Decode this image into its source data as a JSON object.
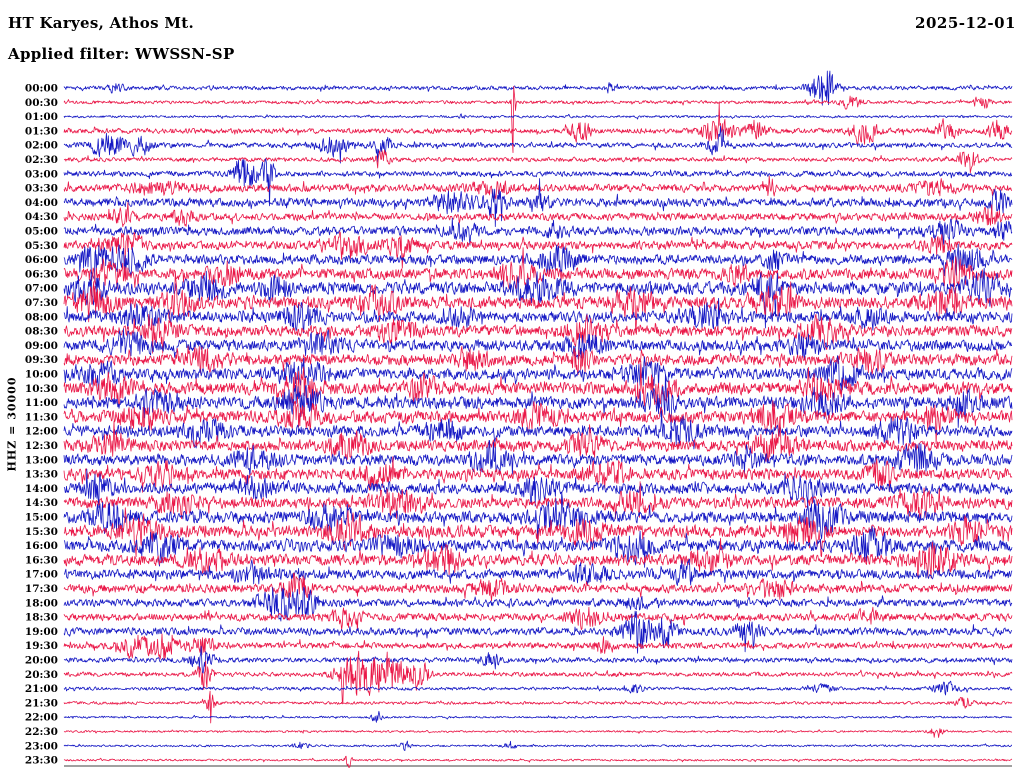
{
  "header": {
    "station_title": "HT Karyes, Athos Mt.",
    "date": "2025-12-01",
    "filter_label": "Applied filter: WWSSN-SP",
    "scale_label": "HHZ = 30000"
  },
  "colors": {
    "trace_blue": "#1518c4",
    "trace_red": "#ea1848",
    "text": "#000000",
    "background": "#ffffff"
  },
  "chart_data": {
    "type": "line",
    "subtype": "helicorder-seismogram-drumplot",
    "station": "HT Karyes, Athos Mt.",
    "date": "2025-12-01",
    "filter": "WWSSN-SP",
    "channel_scale": "HHZ = 30000",
    "minutes_per_row": 30,
    "row_order": "top to bottom, 00:00 to 23:30, colors alternate blue/red",
    "rows_format": {
      "t": "row start time label",
      "c": "trace color key",
      "b": "background noise half-amplitude (px)",
      "e": "bursts: [center 0-1 along row, gaussian width 0-1, half-amplitude px]"
    },
    "rows": [
      {
        "t": "00:00",
        "c": "blue",
        "b": 1.1,
        "e": [
          [
            0.055,
            0.008,
            2.5
          ],
          [
            0.575,
            0.006,
            2
          ],
          [
            0.8,
            0.012,
            13
          ]
        ]
      },
      {
        "t": "00:30",
        "c": "red",
        "b": 0.9,
        "e": [
          [
            0.474,
            0.0018,
            30
          ],
          [
            0.83,
            0.01,
            4
          ],
          [
            0.968,
            0.008,
            3.5
          ]
        ]
      },
      {
        "t": "01:00",
        "c": "blue",
        "b": 0.65,
        "e": [
          [
            0.42,
            0.004,
            1.5
          ]
        ]
      },
      {
        "t": "01:30",
        "c": "red",
        "b": 1.4,
        "e": [
          [
            0.545,
            0.01,
            5.5
          ],
          [
            0.69,
            0.018,
            6.5
          ],
          [
            0.73,
            0.01,
            6
          ],
          [
            0.845,
            0.014,
            6.5
          ],
          [
            0.93,
            0.012,
            5
          ],
          [
            0.985,
            0.01,
            5
          ]
        ]
      },
      {
        "t": "02:00",
        "c": "blue",
        "b": 1.4,
        "e": [
          [
            0.045,
            0.018,
            6
          ],
          [
            0.08,
            0.012,
            5
          ],
          [
            0.285,
            0.018,
            5
          ],
          [
            0.335,
            0.01,
            4.5
          ],
          [
            0.69,
            0.012,
            4.5
          ]
        ]
      },
      {
        "t": "02:30",
        "c": "red",
        "b": 1.2,
        "e": [
          [
            0.335,
            0.007,
            5.5
          ],
          [
            0.955,
            0.009,
            5.5
          ]
        ]
      },
      {
        "t": "03:00",
        "c": "blue",
        "b": 1.5,
        "e": [
          [
            0.19,
            0.01,
            13
          ],
          [
            0.215,
            0.007,
            9
          ]
        ]
      },
      {
        "t": "03:30",
        "c": "red",
        "b": 2.1,
        "e": [
          [
            0.1,
            0.03,
            3
          ],
          [
            0.45,
            0.02,
            3.5
          ],
          [
            0.745,
            0.004,
            8
          ],
          [
            0.92,
            0.02,
            3.5
          ]
        ]
      },
      {
        "t": "04:00",
        "c": "blue",
        "b": 2.4,
        "e": [
          [
            0.41,
            0.02,
            5.5
          ],
          [
            0.455,
            0.012,
            6.5
          ],
          [
            0.5,
            0.01,
            5.5
          ],
          [
            0.985,
            0.008,
            7
          ]
        ]
      },
      {
        "t": "04:30",
        "c": "red",
        "b": 2.1,
        "e": [
          [
            0.06,
            0.01,
            4.5
          ],
          [
            0.125,
            0.01,
            4.5
          ],
          [
            0.975,
            0.012,
            5.5
          ]
        ]
      },
      {
        "t": "05:00",
        "c": "blue",
        "b": 2.4,
        "e": [
          [
            0.42,
            0.014,
            4.5
          ],
          [
            0.52,
            0.01,
            4.5
          ],
          [
            0.93,
            0.018,
            5.5
          ],
          [
            0.99,
            0.008,
            6
          ]
        ]
      },
      {
        "t": "05:30",
        "c": "red",
        "b": 2.4,
        "e": [
          [
            0.065,
            0.018,
            6.5
          ],
          [
            0.3,
            0.022,
            6.5
          ],
          [
            0.355,
            0.013,
            5.5
          ],
          [
            0.92,
            0.014,
            4.5
          ]
        ]
      },
      {
        "t": "06:00",
        "c": "blue",
        "b": 2.7,
        "e": [
          [
            0.035,
            0.018,
            7.5
          ],
          [
            0.07,
            0.018,
            6.5
          ],
          [
            0.52,
            0.02,
            6.5
          ],
          [
            0.75,
            0.01,
            5.5
          ],
          [
            0.95,
            0.018,
            7.5
          ]
        ]
      },
      {
        "t": "06:30",
        "c": "red",
        "b": 3.1,
        "e": [
          [
            0.05,
            0.02,
            5.5
          ],
          [
            0.17,
            0.014,
            5.5
          ],
          [
            0.48,
            0.02,
            5.5
          ],
          [
            0.71,
            0.01,
            5.5
          ],
          [
            0.94,
            0.018,
            6.5
          ]
        ]
      },
      {
        "t": "07:00",
        "c": "blue",
        "b": 3.4,
        "e": [
          [
            0.025,
            0.018,
            8
          ],
          [
            0.15,
            0.018,
            6.5
          ],
          [
            0.225,
            0.014,
            6.5
          ],
          [
            0.5,
            0.024,
            7.5
          ],
          [
            0.74,
            0.014,
            8.5
          ],
          [
            0.97,
            0.018,
            7.5
          ]
        ]
      },
      {
        "t": "07:30",
        "c": "red",
        "b": 3.4,
        "e": [
          [
            0.03,
            0.02,
            7.5
          ],
          [
            0.12,
            0.018,
            6.5
          ],
          [
            0.33,
            0.02,
            6.5
          ],
          [
            0.6,
            0.02,
            6.5
          ],
          [
            0.75,
            0.02,
            7.5
          ],
          [
            0.93,
            0.02,
            6.5
          ]
        ]
      },
      {
        "t": "08:00",
        "c": "blue",
        "b": 3.1,
        "e": [
          [
            0.08,
            0.02,
            5.5
          ],
          [
            0.25,
            0.02,
            6.5
          ],
          [
            0.42,
            0.014,
            5.5
          ],
          [
            0.68,
            0.02,
            6.5
          ],
          [
            0.85,
            0.014,
            5.5
          ]
        ]
      },
      {
        "t": "08:30",
        "c": "red",
        "b": 3.1,
        "e": [
          [
            0.1,
            0.02,
            5.5
          ],
          [
            0.35,
            0.02,
            5.5
          ],
          [
            0.55,
            0.02,
            6.5
          ],
          [
            0.8,
            0.02,
            6.5
          ]
        ]
      },
      {
        "t": "09:00",
        "c": "blue",
        "b": 3.1,
        "e": [
          [
            0.07,
            0.02,
            6.5
          ],
          [
            0.27,
            0.02,
            5.5
          ],
          [
            0.55,
            0.02,
            5.5
          ],
          [
            0.78,
            0.014,
            5.5
          ]
        ]
      },
      {
        "t": "09:30",
        "c": "red",
        "b": 3.1,
        "e": [
          [
            0.15,
            0.02,
            5.5
          ],
          [
            0.43,
            0.014,
            6.5
          ],
          [
            0.545,
            0.01,
            6.5
          ],
          [
            0.85,
            0.02,
            5.5
          ]
        ]
      },
      {
        "t": "10:00",
        "c": "blue",
        "b": 3.1,
        "e": [
          [
            0.035,
            0.02,
            6.5
          ],
          [
            0.25,
            0.024,
            6.5
          ],
          [
            0.61,
            0.02,
            6.5
          ],
          [
            0.82,
            0.02,
            7.5
          ]
        ]
      },
      {
        "t": "10:30",
        "c": "red",
        "b": 3.4,
        "e": [
          [
            0.05,
            0.02,
            6.5
          ],
          [
            0.25,
            0.02,
            7.5
          ],
          [
            0.38,
            0.014,
            6.5
          ],
          [
            0.62,
            0.02,
            7.5
          ],
          [
            0.8,
            0.02,
            6.5
          ]
        ]
      },
      {
        "t": "11:00",
        "c": "blue",
        "b": 3.4,
        "e": [
          [
            0.1,
            0.02,
            6.5
          ],
          [
            0.25,
            0.02,
            7.5
          ],
          [
            0.63,
            0.014,
            7.5
          ],
          [
            0.8,
            0.02,
            6.5
          ],
          [
            0.95,
            0.014,
            6.5
          ]
        ]
      },
      {
        "t": "11:30",
        "c": "red",
        "b": 3.4,
        "e": [
          [
            0.08,
            0.02,
            6.5
          ],
          [
            0.25,
            0.02,
            6.5
          ],
          [
            0.5,
            0.02,
            5.5
          ],
          [
            0.75,
            0.02,
            7.5
          ],
          [
            0.92,
            0.014,
            6.5
          ]
        ]
      },
      {
        "t": "12:00",
        "c": "blue",
        "b": 3.1,
        "e": [
          [
            0.15,
            0.02,
            6.5
          ],
          [
            0.4,
            0.02,
            5.5
          ],
          [
            0.65,
            0.02,
            6.5
          ],
          [
            0.88,
            0.02,
            6.5
          ]
        ]
      },
      {
        "t": "12:30",
        "c": "red",
        "b": 3.1,
        "e": [
          [
            0.05,
            0.02,
            5.5
          ],
          [
            0.3,
            0.02,
            6.5
          ],
          [
            0.55,
            0.02,
            5.5
          ],
          [
            0.75,
            0.02,
            7.5
          ]
        ]
      },
      {
        "t": "13:00",
        "c": "blue",
        "b": 3.1,
        "e": [
          [
            0.2,
            0.02,
            5.5
          ],
          [
            0.45,
            0.02,
            6.5
          ],
          [
            0.72,
            0.014,
            5.5
          ],
          [
            0.9,
            0.02,
            6.5
          ]
        ]
      },
      {
        "t": "13:30",
        "c": "red",
        "b": 3.1,
        "e": [
          [
            0.1,
            0.02,
            5.5
          ],
          [
            0.33,
            0.02,
            5.5
          ],
          [
            0.57,
            0.02,
            6.5
          ],
          [
            0.86,
            0.014,
            5.5
          ]
        ]
      },
      {
        "t": "14:00",
        "c": "blue",
        "b": 3.1,
        "e": [
          [
            0.035,
            0.012,
            7.5
          ],
          [
            0.2,
            0.02,
            5.5
          ],
          [
            0.5,
            0.02,
            5.5
          ],
          [
            0.78,
            0.02,
            6.5
          ]
        ]
      },
      {
        "t": "14:30",
        "c": "red",
        "b": 3.1,
        "e": [
          [
            0.12,
            0.02,
            5.5
          ],
          [
            0.35,
            0.024,
            6.5
          ],
          [
            0.6,
            0.02,
            5.5
          ],
          [
            0.9,
            0.02,
            6.5
          ]
        ]
      },
      {
        "t": "15:00",
        "c": "blue",
        "b": 3.4,
        "e": [
          [
            0.05,
            0.02,
            7.5
          ],
          [
            0.28,
            0.02,
            6.5
          ],
          [
            0.52,
            0.024,
            7.5
          ],
          [
            0.8,
            0.02,
            7.5
          ]
        ]
      },
      {
        "t": "15:30",
        "c": "red",
        "b": 3.4,
        "e": [
          [
            0.08,
            0.02,
            6.5
          ],
          [
            0.3,
            0.02,
            7.5
          ],
          [
            0.55,
            0.02,
            6.5
          ],
          [
            0.78,
            0.02,
            7.5
          ],
          [
            0.95,
            0.014,
            6.5
          ]
        ]
      },
      {
        "t": "16:00",
        "c": "blue",
        "b": 3.4,
        "e": [
          [
            0.1,
            0.02,
            7.5
          ],
          [
            0.35,
            0.02,
            6.5
          ],
          [
            0.6,
            0.02,
            7.5
          ],
          [
            0.85,
            0.02,
            7.5
          ]
        ]
      },
      {
        "t": "16:30",
        "c": "red",
        "b": 3.1,
        "e": [
          [
            0.15,
            0.02,
            5.5
          ],
          [
            0.4,
            0.02,
            6.5
          ],
          [
            0.68,
            0.02,
            5.5
          ],
          [
            0.92,
            0.02,
            7.5
          ]
        ]
      },
      {
        "t": "17:00",
        "c": "blue",
        "b": 2.7,
        "e": [
          [
            0.2,
            0.02,
            4.5
          ],
          [
            0.55,
            0.02,
            5.5
          ],
          [
            0.655,
            0.012,
            5.5
          ]
        ]
      },
      {
        "t": "17:30",
        "c": "red",
        "b": 2.4,
        "e": [
          [
            0.245,
            0.013,
            7.5
          ],
          [
            0.45,
            0.02,
            4.5
          ],
          [
            0.75,
            0.02,
            4.5
          ]
        ]
      },
      {
        "t": "18:00",
        "c": "blue",
        "b": 2.1,
        "e": [
          [
            0.225,
            0.018,
            8.5
          ],
          [
            0.255,
            0.012,
            7.5
          ],
          [
            0.6,
            0.02,
            3.5
          ]
        ]
      },
      {
        "t": "18:30",
        "c": "red",
        "b": 2.1,
        "e": [
          [
            0.3,
            0.02,
            3.5
          ],
          [
            0.55,
            0.02,
            4.5
          ],
          [
            0.85,
            0.014,
            3.5
          ]
        ]
      },
      {
        "t": "19:00",
        "c": "blue",
        "b": 2.1,
        "e": [
          [
            0.605,
            0.014,
            10.5
          ],
          [
            0.635,
            0.009,
            8.5
          ],
          [
            0.72,
            0.014,
            5.5
          ]
        ]
      },
      {
        "t": "19:30",
        "c": "red",
        "b": 1.7,
        "e": [
          [
            0.065,
            0.013,
            5.5
          ],
          [
            0.1,
            0.018,
            6.5
          ],
          [
            0.145,
            0.013,
            5.5
          ],
          [
            0.57,
            0.01,
            4.5
          ]
        ]
      },
      {
        "t": "20:00",
        "c": "blue",
        "b": 1.4,
        "e": [
          [
            0.145,
            0.011,
            6.5
          ],
          [
            0.45,
            0.01,
            3.5
          ]
        ]
      },
      {
        "t": "20:30",
        "c": "red",
        "b": 1.2,
        "e": [
          [
            0.148,
            0.007,
            8.5
          ],
          [
            0.31,
            0.02,
            12.5
          ],
          [
            0.345,
            0.014,
            11.5
          ],
          [
            0.375,
            0.009,
            9.5
          ]
        ]
      },
      {
        "t": "21:00",
        "c": "blue",
        "b": 0.9,
        "e": [
          [
            0.6,
            0.01,
            2.5
          ],
          [
            0.8,
            0.01,
            2.5
          ],
          [
            0.93,
            0.012,
            3.5
          ]
        ]
      },
      {
        "t": "21:30",
        "c": "red",
        "b": 0.8,
        "e": [
          [
            0.155,
            0.005,
            6.5
          ],
          [
            0.95,
            0.01,
            2.5
          ]
        ]
      },
      {
        "t": "22:00",
        "c": "blue",
        "b": 0.55,
        "e": [
          [
            0.33,
            0.005,
            3.5
          ]
        ]
      },
      {
        "t": "22:30",
        "c": "red",
        "b": 0.55,
        "e": [
          [
            0.92,
            0.007,
            3.5
          ]
        ]
      },
      {
        "t": "23:00",
        "c": "blue",
        "b": 0.55,
        "e": [
          [
            0.25,
            0.007,
            2.5
          ],
          [
            0.36,
            0.007,
            2.5
          ],
          [
            0.47,
            0.007,
            2.5
          ]
        ]
      },
      {
        "t": "23:30",
        "c": "red",
        "b": 0.55,
        "e": [
          [
            0.3,
            0.0035,
            4.5
          ]
        ]
      }
    ]
  }
}
